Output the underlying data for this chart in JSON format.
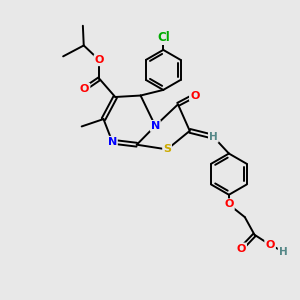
{
  "bg_color": "#e8e8e8",
  "bond_color": "#000000",
  "atom_colors": {
    "O": "#ff0000",
    "N": "#0000ff",
    "S": "#ccaa00",
    "Cl": "#00aa00",
    "H": "#558888",
    "C": "#000000"
  },
  "lw": 1.4,
  "fs": 8.0
}
